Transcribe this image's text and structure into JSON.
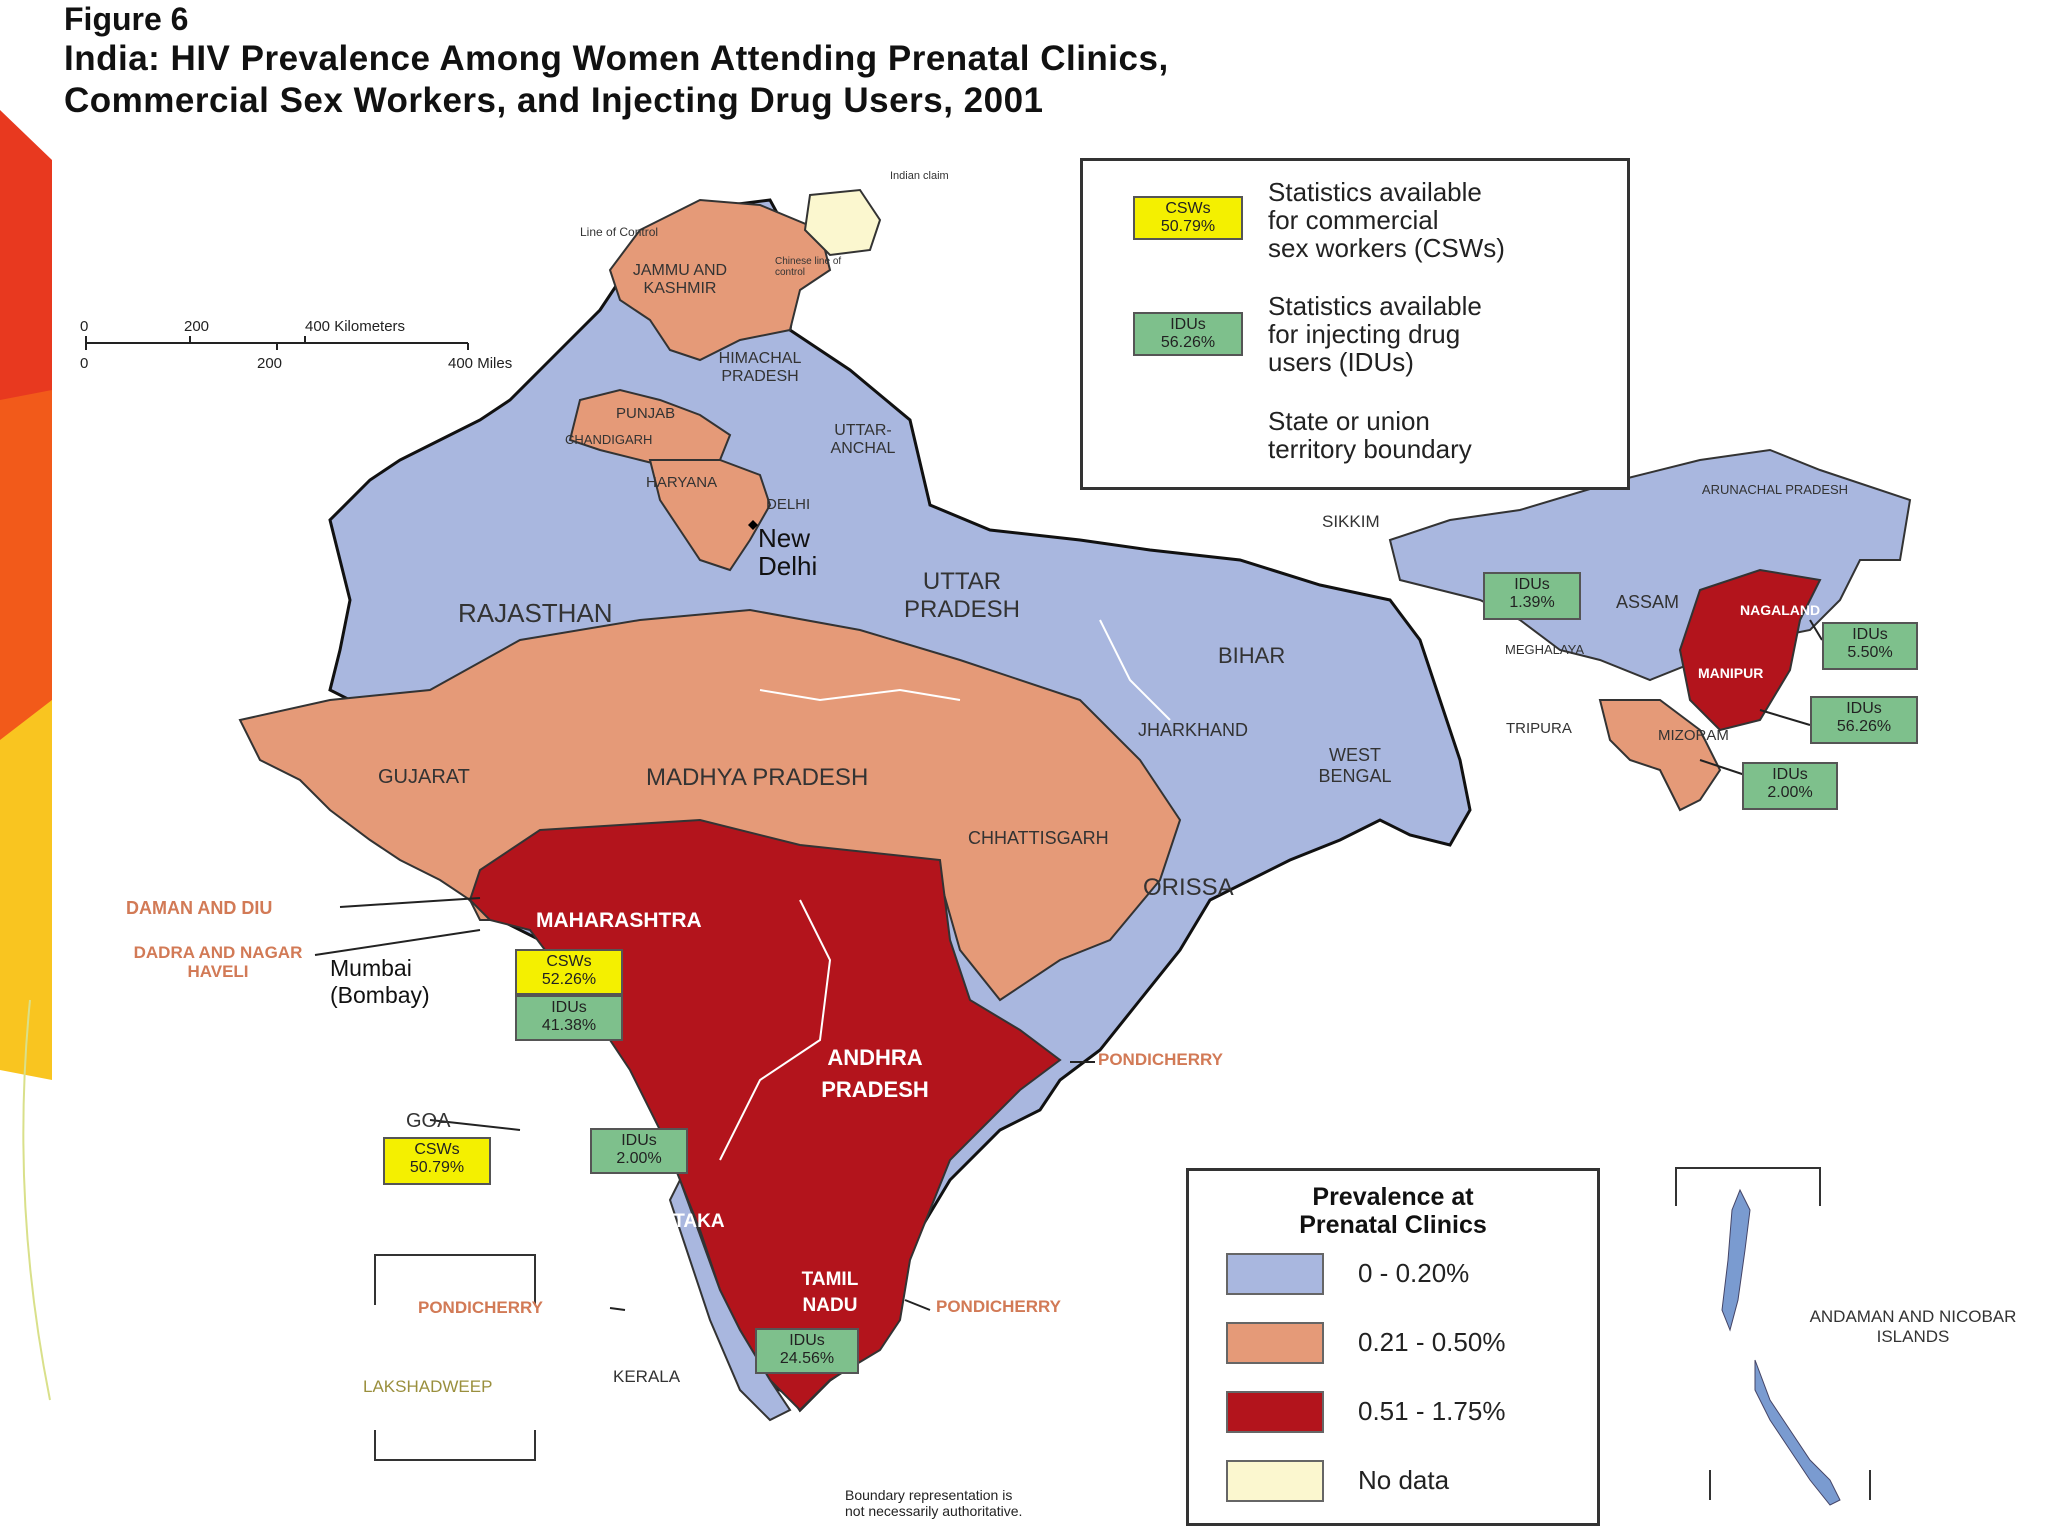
{
  "figure_label": "Figure 6",
  "title_lines": [
    "India: HIV Prevalence Among Women Attending Prenatal Clinics,",
    "Commercial Sex Workers, and Injecting Drug Users, 2001"
  ],
  "legend": {
    "csw_sample": [
      "CSWs",
      "50.79%"
    ],
    "csw_text": [
      "Statistics available",
      "for commercial",
      "sex workers (CSWs)"
    ],
    "idu_sample": [
      "IDUs",
      "56.26%"
    ],
    "idu_text": [
      "Statistics available",
      "for injecting drug",
      "users (IDUs)"
    ],
    "boundary_text": [
      "State or union",
      "territory boundary"
    ]
  },
  "prevalence_legend": {
    "title_lines": [
      "Prevalence at",
      "Prenatal Clinics"
    ],
    "items": [
      {
        "label": "0 - 0.20%",
        "color": "#a9b7df"
      },
      {
        "label": "0.21 - 0.50%",
        "color": "#e59a78"
      },
      {
        "label": "0.51 - 1.75%",
        "color": "#b3141c"
      },
      {
        "label": "No data",
        "color": "#fbf7cf"
      }
    ]
  },
  "scale": {
    "km_ticks": [
      "0",
      "200",
      "400 Kilometers"
    ],
    "mi_ticks": [
      "0",
      "200",
      "400 Miles"
    ]
  },
  "regions": {
    "jammu_kashmir": "JAMMU AND KASHMIR",
    "indian_claim": "Indian claim",
    "line_of_control": "Line of Control",
    "chinese_line": "Chinese line of control",
    "himachal": "HIMACHAL PRADESH",
    "punjab": "PUNJAB",
    "chandigarh": "CHANDIGARH",
    "uttaranchal": "UTTAR- ANCHAL",
    "haryana": "HARYANA",
    "delhi": "DELHI",
    "new_delhi": "New Delhi",
    "rajasthan": "RAJASTHAN",
    "uttar_pradesh": "UTTAR PRADESH",
    "bihar": "BIHAR",
    "jharkhand": "JHARKHAND",
    "west_bengal": "WEST BENGAL",
    "gujarat": "GUJARAT",
    "madhya_pradesh": "MADHYA PRADESH",
    "chhattisgarh": "CHHATTISGARH",
    "orissa": "ORISSA",
    "maharashtra": "MAHARASHTRA",
    "andhra": "ANDHRA PRADESH",
    "karnataka": "KARNATAKA",
    "tamil_nadu": "TAMIL NADU",
    "kerala": "KERALA",
    "goa": "GOA",
    "sikkim": "SIKKIM",
    "arunachal": "ARUNACHAL PRADESH",
    "assam": "ASSAM",
    "meghalaya": "MEGHALAYA",
    "nagaland": "NAGALAND",
    "manipur": "MANIPUR",
    "tripura": "TRIPURA",
    "mizoram": "MIZORAM",
    "daman_diu": "DAMAN AND DIU",
    "dadra_nagar": "DADRA AND NAGAR HAVELI",
    "mumbai": "Mumbai (Bombay)",
    "pondicherry": "PONDICHERRY",
    "lakshadweep": "LAKSHADWEEP",
    "andaman": "ANDAMAN AND NICOBAR ISLANDS"
  },
  "stat_tags": {
    "maharashtra_csw": [
      "CSWs",
      "52.26%"
    ],
    "maharashtra_idu": [
      "IDUs",
      "41.38%"
    ],
    "goa_csw": [
      "CSWs",
      "50.79%"
    ],
    "karnataka_idu": [
      "IDUs",
      "2.00%"
    ],
    "tamil_idu": [
      "IDUs",
      "24.56%"
    ],
    "meghalaya_idu": [
      "IDUs",
      "1.39%"
    ],
    "nagaland_idu": [
      "IDUs",
      "5.50%"
    ],
    "manipur_idu": [
      "IDUs",
      "56.26%"
    ],
    "mizoram_idu": [
      "IDUs",
      "2.00%"
    ]
  },
  "boundary_note": [
    "Boundary representation is",
    "not necessarily authoritative."
  ]
}
